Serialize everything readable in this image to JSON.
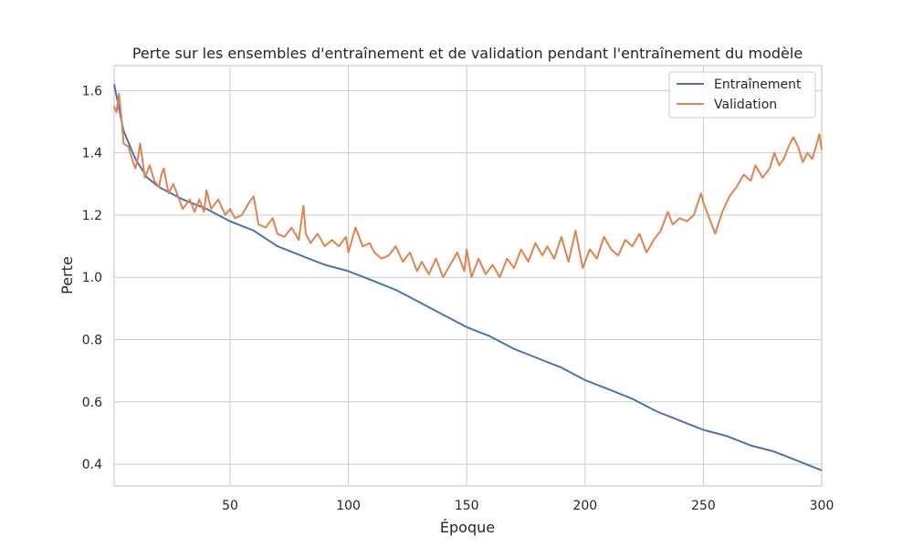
{
  "chart_data": {
    "type": "line",
    "title": "Perte sur les ensembles d'entraînement et de validation pendant l'entraînement du modèle",
    "xlabel": "Époque",
    "ylabel": "Perte",
    "xlim": [
      1,
      300
    ],
    "ylim": [
      0.33,
      1.68
    ],
    "xticks": [
      50,
      100,
      150,
      200,
      250,
      300
    ],
    "yticks": [
      0.4,
      0.6,
      0.8,
      1.0,
      1.2,
      1.4,
      1.6
    ],
    "xtick_labels": [
      "50",
      "100",
      "150",
      "200",
      "250",
      "300"
    ],
    "ytick_labels": [
      "0.4",
      "0.6",
      "0.8",
      "1.0",
      "1.2",
      "1.4",
      "1.6"
    ],
    "grid": true,
    "legend_position": "top-right",
    "series": [
      {
        "name": "Entraînement",
        "color": "#4c72b0",
        "x": [
          1,
          5,
          10,
          15,
          20,
          25,
          30,
          40,
          50,
          60,
          70,
          80,
          90,
          100,
          110,
          120,
          130,
          140,
          150,
          160,
          170,
          180,
          190,
          200,
          210,
          220,
          230,
          240,
          250,
          260,
          270,
          280,
          290,
          300
        ],
        "y": [
          1.62,
          1.47,
          1.38,
          1.32,
          1.29,
          1.27,
          1.25,
          1.22,
          1.18,
          1.15,
          1.1,
          1.07,
          1.04,
          1.02,
          0.99,
          0.96,
          0.92,
          0.88,
          0.84,
          0.81,
          0.77,
          0.74,
          0.71,
          0.67,
          0.64,
          0.61,
          0.57,
          0.54,
          0.51,
          0.49,
          0.46,
          0.44,
          0.41,
          0.38
        ]
      },
      {
        "name": "Validation",
        "color": "#dd8452",
        "x": [
          1,
          2,
          3,
          4,
          5,
          7,
          9,
          10,
          11,
          12,
          14,
          16,
          18,
          20,
          21,
          22,
          24,
          26,
          28,
          30,
          33,
          35,
          37,
          39,
          40,
          42,
          45,
          48,
          50,
          52,
          55,
          58,
          60,
          62,
          65,
          68,
          70,
          73,
          76,
          79,
          81,
          82,
          84,
          87,
          90,
          93,
          96,
          99,
          100,
          103,
          106,
          109,
          111,
          114,
          117,
          120,
          123,
          126,
          129,
          131,
          134,
          137,
          140,
          143,
          146,
          149,
          150,
          152,
          155,
          158,
          161,
          164,
          167,
          170,
          173,
          176,
          179,
          182,
          184,
          187,
          190,
          193,
          196,
          199,
          202,
          205,
          208,
          211,
          214,
          217,
          220,
          223,
          226,
          229,
          232,
          235,
          237,
          240,
          243,
          246,
          249,
          250,
          252,
          255,
          258,
          261,
          264,
          267,
          270,
          272,
          275,
          278,
          280,
          282,
          284,
          286,
          288,
          290,
          292,
          294,
          296,
          298,
          299,
          300
        ],
        "y": [
          1.55,
          1.53,
          1.59,
          1.52,
          1.43,
          1.42,
          1.37,
          1.35,
          1.38,
          1.43,
          1.32,
          1.36,
          1.31,
          1.29,
          1.33,
          1.35,
          1.27,
          1.3,
          1.26,
          1.22,
          1.25,
          1.21,
          1.25,
          1.21,
          1.28,
          1.22,
          1.25,
          1.2,
          1.22,
          1.19,
          1.2,
          1.24,
          1.26,
          1.17,
          1.16,
          1.19,
          1.14,
          1.13,
          1.16,
          1.12,
          1.23,
          1.14,
          1.11,
          1.14,
          1.1,
          1.12,
          1.1,
          1.13,
          1.08,
          1.16,
          1.1,
          1.11,
          1.08,
          1.06,
          1.07,
          1.1,
          1.05,
          1.08,
          1.02,
          1.05,
          1.01,
          1.06,
          1.0,
          1.04,
          1.08,
          1.02,
          1.09,
          1.0,
          1.06,
          1.01,
          1.04,
          1.0,
          1.06,
          1.03,
          1.09,
          1.05,
          1.11,
          1.07,
          1.1,
          1.06,
          1.13,
          1.05,
          1.15,
          1.03,
          1.09,
          1.06,
          1.13,
          1.09,
          1.07,
          1.12,
          1.1,
          1.14,
          1.08,
          1.12,
          1.15,
          1.21,
          1.17,
          1.19,
          1.18,
          1.2,
          1.27,
          1.24,
          1.2,
          1.14,
          1.21,
          1.26,
          1.29,
          1.33,
          1.31,
          1.36,
          1.32,
          1.35,
          1.4,
          1.36,
          1.38,
          1.42,
          1.45,
          1.42,
          1.37,
          1.4,
          1.38,
          1.43,
          1.46,
          1.41
        ]
      }
    ]
  }
}
